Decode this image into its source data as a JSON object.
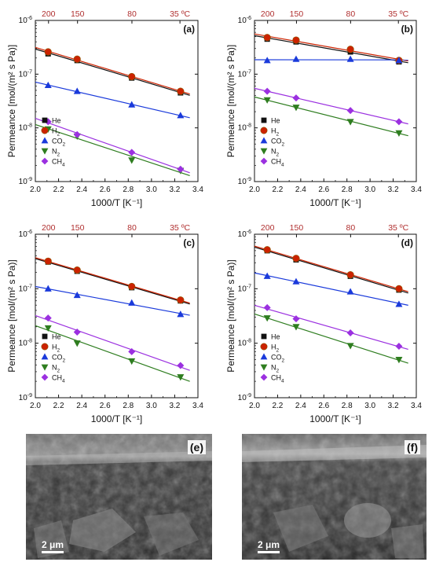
{
  "chart_data": [
    {
      "type": "scatter",
      "panel_label": "(a)",
      "ylabel": "Permeance [mol/(m² s Pa)]",
      "xlabel": "1000/T [K⁻¹]",
      "xlim": [
        2.0,
        3.4
      ],
      "ylim": [
        1e-09,
        1e-06
      ],
      "yscale": "log",
      "xticks": [
        "2.0",
        "2.2",
        "2.4",
        "2.6",
        "2.8",
        "3.0",
        "3.2",
        "3.4"
      ],
      "top_axis_labels": [
        "200",
        "150",
        "80",
        "35 ºC"
      ],
      "top_axis_values": [
        200,
        150,
        80,
        35
      ],
      "legend_position": "bottom-left",
      "series": [
        {
          "name": "He",
          "color": "#111111",
          "marker": "square",
          "x": [
            2.11,
            2.36,
            2.83,
            3.25
          ],
          "y": [
            2.4e-07,
            1.8e-07,
            8.5e-08,
            4.5e-08
          ]
        },
        {
          "name": "H2",
          "color": "#cc2200",
          "marker": "circle",
          "x": [
            2.11,
            2.36,
            2.83,
            3.25
          ],
          "y": [
            2.6e-07,
            1.9e-07,
            9e-08,
            4.8e-08
          ]
        },
        {
          "name": "CO2",
          "color": "#1a3adb",
          "marker": "triangle-up",
          "x": [
            2.11,
            2.36,
            2.83,
            3.25
          ],
          "y": [
            6.2e-08,
            4.8e-08,
            2.7e-08,
            1.7e-08
          ]
        },
        {
          "name": "N2",
          "color": "#2e7d1f",
          "marker": "triangle-down",
          "x": [
            2.11,
            2.36,
            2.83,
            3.25
          ],
          "y": [
            9.5e-09,
            7e-09,
            2.5e-09,
            1.6e-09
          ]
        },
        {
          "name": "CH4",
          "color": "#9b30e0",
          "marker": "diamond",
          "x": [
            2.11,
            2.36,
            2.83,
            3.25
          ],
          "y": [
            1.3e-08,
            7.5e-09,
            3.5e-09,
            1.7e-09
          ]
        }
      ]
    },
    {
      "type": "scatter",
      "panel_label": "(b)",
      "ylabel": "Permeance [mol/(m² s Pa)]",
      "xlabel": "1000/T [K⁻¹]",
      "xlim": [
        2.0,
        3.4
      ],
      "ylim": [
        1e-09,
        1e-06
      ],
      "yscale": "log",
      "xticks": [
        "2.0",
        "2.2",
        "2.4",
        "2.6",
        "2.8",
        "3.0",
        "3.2",
        "3.4"
      ],
      "top_axis_labels": [
        "200",
        "150",
        "80",
        "35 ºC"
      ],
      "top_axis_values": [
        200,
        150,
        80,
        35
      ],
      "legend_position": "bottom-left",
      "series": [
        {
          "name": "He",
          "color": "#111111",
          "marker": "square",
          "x": [
            2.11,
            2.36,
            2.83,
            3.25
          ],
          "y": [
            4.5e-07,
            4e-07,
            2.6e-07,
            1.7e-07
          ]
        },
        {
          "name": "H2",
          "color": "#cc2200",
          "marker": "circle",
          "x": [
            2.11,
            2.36,
            2.83,
            3.25
          ],
          "y": [
            4.8e-07,
            4.3e-07,
            2.9e-07,
            1.8e-07
          ]
        },
        {
          "name": "CO2",
          "color": "#1a3adb",
          "marker": "triangle-up",
          "x": [
            2.11,
            2.36,
            2.83,
            3.25
          ],
          "y": [
            1.8e-07,
            1.9e-07,
            1.9e-07,
            1.8e-07
          ]
        },
        {
          "name": "N2",
          "color": "#2e7d1f",
          "marker": "triangle-down",
          "x": [
            2.11,
            2.36,
            2.83,
            3.25
          ],
          "y": [
            3.3e-08,
            2.4e-08,
            1.3e-08,
            8e-09
          ]
        },
        {
          "name": "CH4",
          "color": "#9b30e0",
          "marker": "diamond",
          "x": [
            2.11,
            2.36,
            2.83,
            3.25
          ],
          "y": [
            4.8e-08,
            3.6e-08,
            2.1e-08,
            1.3e-08
          ]
        }
      ]
    },
    {
      "type": "scatter",
      "panel_label": "(c)",
      "ylabel": "Permeance [mol/(m² s Pa)]",
      "xlabel": "1000/T [K⁻¹]",
      "xlim": [
        2.0,
        3.4
      ],
      "ylim": [
        1e-09,
        1e-06
      ],
      "yscale": "log",
      "xticks": [
        "2.0",
        "2.2",
        "2.4",
        "2.6",
        "2.8",
        "3.0",
        "3.2",
        "3.4"
      ],
      "top_axis_labels": [
        "200",
        "150",
        "80",
        "35 ºC"
      ],
      "top_axis_values": [
        200,
        150,
        80,
        35
      ],
      "legend_position": "bottom-left",
      "series": [
        {
          "name": "He",
          "color": "#111111",
          "marker": "square",
          "x": [
            2.11,
            2.36,
            2.83,
            3.25
          ],
          "y": [
            3.1e-07,
            2.1e-07,
            1.05e-07,
            6e-08
          ]
        },
        {
          "name": "H2",
          "color": "#cc2200",
          "marker": "circle",
          "x": [
            2.11,
            2.36,
            2.83,
            3.25
          ],
          "y": [
            3.2e-07,
            2.2e-07,
            1.1e-07,
            6.2e-08
          ]
        },
        {
          "name": "CO2",
          "color": "#1a3adb",
          "marker": "triangle-up",
          "x": [
            2.11,
            2.36,
            2.83,
            3.25
          ],
          "y": [
            1e-07,
            7.6e-08,
            5.5e-08,
            3.4e-08
          ]
        },
        {
          "name": "N2",
          "color": "#2e7d1f",
          "marker": "triangle-down",
          "x": [
            2.11,
            2.36,
            2.83,
            3.25
          ],
          "y": [
            1.9e-08,
            1e-08,
            4.7e-09,
            2.4e-09
          ]
        },
        {
          "name": "CH4",
          "color": "#9b30e0",
          "marker": "diamond",
          "x": [
            2.11,
            2.36,
            2.83,
            3.25
          ],
          "y": [
            2.9e-08,
            1.6e-08,
            7e-09,
            3.9e-09
          ]
        }
      ]
    },
    {
      "type": "scatter",
      "panel_label": "(d)",
      "ylabel": "Permeance [mol/(m² s Pa)]",
      "xlabel": "1000/T [K⁻¹]",
      "xlim": [
        2.0,
        3.4
      ],
      "ylim": [
        1e-09,
        1e-06
      ],
      "yscale": "log",
      "xticks": [
        "2.0",
        "2.2",
        "2.4",
        "2.6",
        "2.8",
        "3.0",
        "3.2",
        "3.4"
      ],
      "top_axis_labels": [
        "200",
        "150",
        "80",
        "35 ºC"
      ],
      "top_axis_values": [
        200,
        150,
        80,
        35
      ],
      "legend_position": "bottom-left",
      "series": [
        {
          "name": "He",
          "color": "#111111",
          "marker": "square",
          "x": [
            2.11,
            2.36,
            2.83,
            3.25
          ],
          "y": [
            5e-07,
            3.4e-07,
            1.7e-07,
            9.5e-08
          ]
        },
        {
          "name": "H2",
          "color": "#cc2200",
          "marker": "circle",
          "x": [
            2.11,
            2.36,
            2.83,
            3.25
          ],
          "y": [
            5.2e-07,
            3.6e-07,
            1.8e-07,
            1e-07
          ]
        },
        {
          "name": "CO2",
          "color": "#1a3adb",
          "marker": "triangle-up",
          "x": [
            2.11,
            2.36,
            2.83,
            3.25
          ],
          "y": [
            1.7e-07,
            1.35e-07,
            8.8e-08,
            5.2e-08
          ]
        },
        {
          "name": "N2",
          "color": "#2e7d1f",
          "marker": "triangle-down",
          "x": [
            2.11,
            2.36,
            2.83,
            3.25
          ],
          "y": [
            2.9e-08,
            2e-08,
            9e-09,
            5e-09
          ]
        },
        {
          "name": "CH4",
          "color": "#9b30e0",
          "marker": "diamond",
          "x": [
            2.11,
            2.36,
            2.83,
            3.25
          ],
          "y": [
            4.5e-08,
            2.8e-08,
            1.55e-08,
            8.8e-09
          ]
        }
      ]
    }
  ],
  "sem_images": [
    {
      "panel_label": "(e)",
      "scale_bar": "2 μm",
      "description_icon": "sem-micrograph-image"
    },
    {
      "panel_label": "(f)",
      "scale_bar": "2 μm",
      "description_icon": "sem-micrograph-image"
    }
  ],
  "colors": {
    "top_axis_text": "#b03030",
    "axis": "#111111"
  }
}
